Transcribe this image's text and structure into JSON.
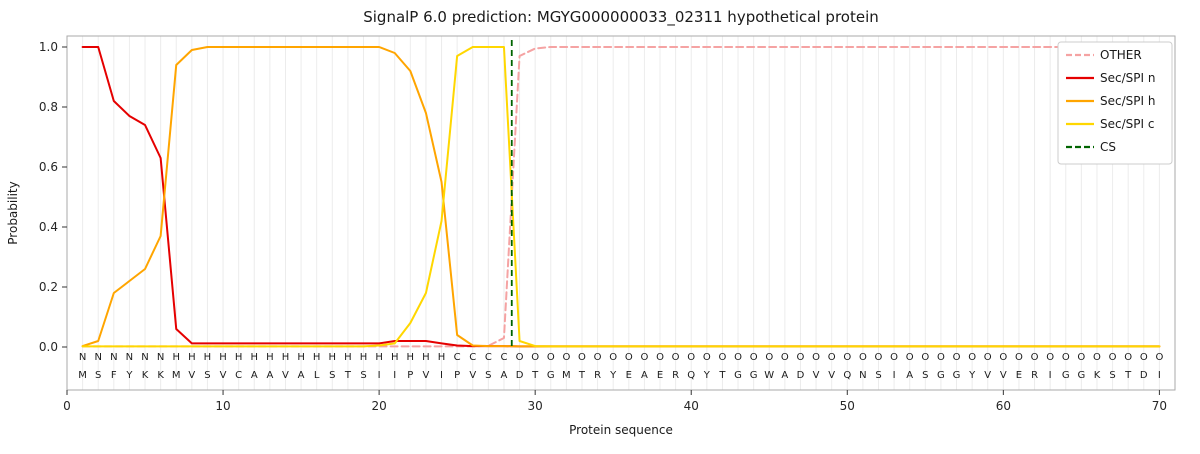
{
  "chart_data": {
    "type": "line",
    "title": "SignalP 6.0 prediction: MGYG000000033_02311 hypothetical protein",
    "xlabel": "Protein sequence",
    "ylabel": "Probability",
    "xlim": [
      0,
      71
    ],
    "ylim": [
      0.0,
      1.0
    ],
    "x_ticks": [
      0,
      10,
      20,
      30,
      40,
      50,
      60,
      70
    ],
    "y_ticks": [
      0.0,
      0.2,
      0.4,
      0.6,
      0.8,
      1.0
    ],
    "grid": "vertical-per-residue",
    "legend_position": "upper right",
    "positions": [
      1,
      2,
      3,
      4,
      5,
      6,
      7,
      8,
      9,
      10,
      11,
      12,
      13,
      14,
      15,
      16,
      17,
      18,
      19,
      20,
      21,
      22,
      23,
      24,
      25,
      26,
      27,
      28,
      29,
      30,
      31,
      32,
      33,
      34,
      35,
      36,
      37,
      38,
      39,
      40,
      41,
      42,
      43,
      44,
      45,
      46,
      47,
      48,
      49,
      50,
      51,
      52,
      53,
      54,
      55,
      56,
      57,
      58,
      59,
      60,
      61,
      62,
      63,
      64,
      65,
      66,
      67,
      68,
      69,
      70
    ],
    "series": [
      {
        "name": "OTHER",
        "color": "#f5a3a3",
        "style": "dashed",
        "values": [
          0.002,
          0.002,
          0.002,
          0.002,
          0.002,
          0.002,
          0.002,
          0.002,
          0.002,
          0.002,
          0.002,
          0.002,
          0.002,
          0.002,
          0.002,
          0.002,
          0.002,
          0.002,
          0.002,
          0.002,
          0.002,
          0.002,
          0.002,
          0.002,
          0.002,
          0.002,
          0.004,
          0.03,
          0.97,
          0.995,
          1.0,
          1.0,
          1.0,
          1.0,
          1.0,
          1.0,
          1.0,
          1.0,
          1.0,
          1.0,
          1.0,
          1.0,
          1.0,
          1.0,
          1.0,
          1.0,
          1.0,
          1.0,
          1.0,
          1.0,
          1.0,
          1.0,
          1.0,
          1.0,
          1.0,
          1.0,
          1.0,
          1.0,
          1.0,
          1.0,
          1.0,
          1.0,
          1.0,
          1.0,
          1.0,
          1.0,
          1.0,
          1.0,
          1.0,
          1.0
        ]
      },
      {
        "name": "Sec/SPI n",
        "color": "#e50000",
        "style": "solid",
        "values": [
          1.0,
          1.0,
          0.82,
          0.77,
          0.74,
          0.63,
          0.06,
          0.012,
          0.012,
          0.012,
          0.012,
          0.012,
          0.012,
          0.012,
          0.012,
          0.012,
          0.012,
          0.012,
          0.012,
          0.012,
          0.02,
          0.02,
          0.02,
          0.012,
          0.005,
          0.003,
          0.003,
          0.003,
          0.002,
          0.002,
          0.002,
          0.002,
          0.002,
          0.002,
          0.002,
          0.002,
          0.002,
          0.002,
          0.002,
          0.002,
          0.002,
          0.002,
          0.002,
          0.002,
          0.002,
          0.002,
          0.002,
          0.002,
          0.002,
          0.002,
          0.002,
          0.002,
          0.002,
          0.002,
          0.002,
          0.002,
          0.002,
          0.002,
          0.002,
          0.002,
          0.002,
          0.002,
          0.002,
          0.002,
          0.002,
          0.002,
          0.002,
          0.002,
          0.002,
          0.002
        ]
      },
      {
        "name": "Sec/SPI h",
        "color": "#ffa500",
        "style": "solid",
        "values": [
          0.003,
          0.02,
          0.18,
          0.22,
          0.26,
          0.37,
          0.94,
          0.99,
          1.0,
          1.0,
          1.0,
          1.0,
          1.0,
          1.0,
          1.0,
          1.0,
          1.0,
          1.0,
          1.0,
          1.0,
          0.98,
          0.92,
          0.78,
          0.55,
          0.04,
          0.005,
          0.003,
          0.003,
          0.002,
          0.002,
          0.002,
          0.002,
          0.002,
          0.002,
          0.002,
          0.002,
          0.002,
          0.002,
          0.002,
          0.002,
          0.002,
          0.002,
          0.002,
          0.002,
          0.002,
          0.002,
          0.002,
          0.002,
          0.002,
          0.002,
          0.002,
          0.002,
          0.002,
          0.002,
          0.002,
          0.002,
          0.002,
          0.002,
          0.002,
          0.002,
          0.002,
          0.002,
          0.002,
          0.002,
          0.002,
          0.002,
          0.002,
          0.002,
          0.002,
          0.002
        ]
      },
      {
        "name": "Sec/SPI c",
        "color": "#ffd700",
        "style": "solid",
        "values": [
          0.002,
          0.002,
          0.002,
          0.002,
          0.002,
          0.002,
          0.002,
          0.002,
          0.002,
          0.002,
          0.002,
          0.002,
          0.002,
          0.002,
          0.002,
          0.002,
          0.002,
          0.002,
          0.002,
          0.005,
          0.012,
          0.08,
          0.18,
          0.42,
          0.97,
          1.0,
          1.0,
          1.0,
          0.02,
          0.003,
          0.002,
          0.002,
          0.002,
          0.002,
          0.002,
          0.002,
          0.002,
          0.002,
          0.002,
          0.002,
          0.002,
          0.002,
          0.002,
          0.002,
          0.002,
          0.002,
          0.002,
          0.002,
          0.002,
          0.002,
          0.002,
          0.002,
          0.002,
          0.002,
          0.002,
          0.002,
          0.002,
          0.002,
          0.002,
          0.002,
          0.002,
          0.002,
          0.002,
          0.002,
          0.002,
          0.002,
          0.002,
          0.002,
          0.002,
          0.002
        ]
      }
    ],
    "cs_line": {
      "name": "CS",
      "position": 28.5,
      "color": "#006400",
      "style": "dashed"
    },
    "sequence": "MSFYKKMVSVCAAVALSTSIIPVIPVSADTGMTRYEAERQYTGGWADVVQNSIASGGYVVERIGGKSTDI",
    "regions": "NNNNNNHHHHHHHHHHHHHHHHHHCCCCOOOOOOOOOOOOOOOOOOOOOOOOOOOOOOOOOOOOOOOOOO",
    "region_colors": {
      "N": "#e50000",
      "H": "#ffa500",
      "C": "#ffd700",
      "O": "#b3b3b3"
    },
    "legend_labels": [
      "OTHER",
      "Sec/SPI n",
      "Sec/SPI h",
      "Sec/SPI c",
      "CS"
    ]
  },
  "style_colors": {
    "grid": "#ececec",
    "frame": "#aaaaaa",
    "residue_text": "#222222",
    "legend_border": "#cccccc"
  }
}
